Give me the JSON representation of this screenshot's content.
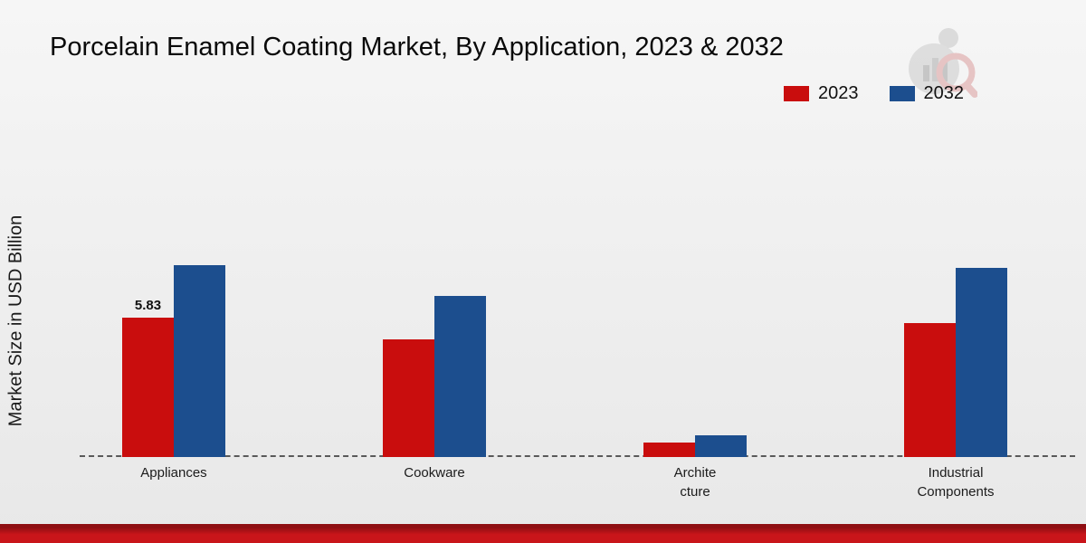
{
  "title": "Porcelain Enamel Coating Market, By Application, 2023 & 2032",
  "y_axis_label": "Market Size in USD Billion",
  "legend": {
    "items": [
      {
        "label": "2023",
        "color": "#c90d0d"
      },
      {
        "label": "2032",
        "color": "#1c4e8e"
      }
    ]
  },
  "chart_data": {
    "type": "bar",
    "title": "Porcelain Enamel Coating Market, By Application, 2023 & 2032",
    "ylabel": "Market Size in USD Billion",
    "unit": "USD Billion",
    "categories": [
      "Appliances",
      "Cookware",
      "Architecture",
      "Industrial Components"
    ],
    "display_categories": [
      "Appliances",
      "Cookware",
      "Archite\ncture",
      "Industrial\nComponents"
    ],
    "series": [
      {
        "name": "2023",
        "color": "#c90d0d",
        "values": [
          5.83,
          4.9,
          0.62,
          5.6
        ]
      },
      {
        "name": "2032",
        "color": "#1c4e8e",
        "values": [
          8.0,
          6.7,
          0.92,
          7.9
        ]
      }
    ],
    "ylim": [
      0,
      10
    ],
    "grid": false,
    "legend_position": "top-right",
    "baseline": "dashed",
    "annotations": [
      {
        "series_index": 0,
        "category_index": 0,
        "text": "5.83",
        "value": 5.83
      }
    ]
  },
  "footer_color": "#c9151a"
}
